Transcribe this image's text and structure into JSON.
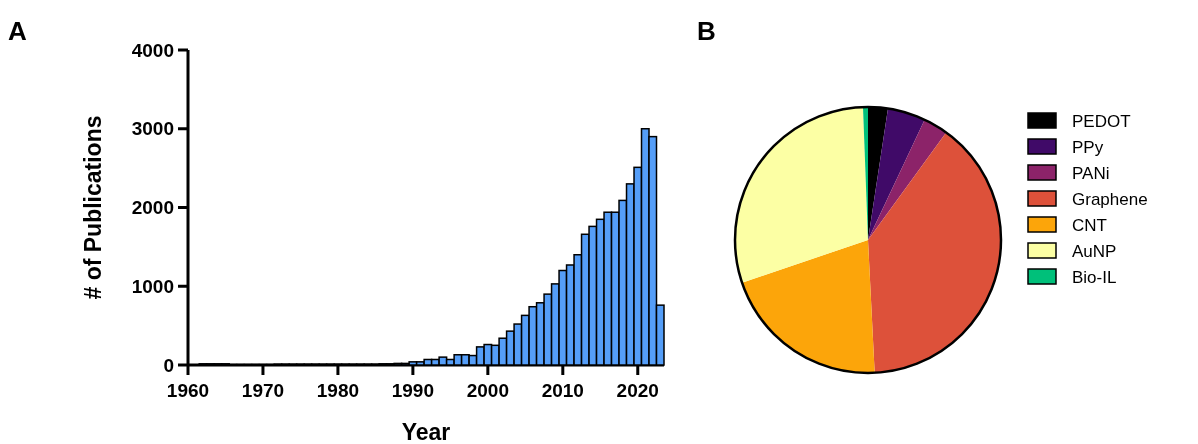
{
  "chart_data": [
    {
      "type": "histogram",
      "title": "A",
      "xlabel": "Year",
      "ylabel": "# of Publications",
      "color": "#559ef8",
      "bins": [
        1961.5,
        1962.5,
        1963.5,
        1964.5,
        1965.5,
        1966.5,
        1967.5,
        1968.5,
        1969.5,
        1970.5,
        1971.5,
        1972.5,
        1973.5,
        1974.5,
        1975.5,
        1976.5,
        1977.5,
        1978.5,
        1979.5,
        1980.5,
        1981.5,
        1982.5,
        1983.5,
        1984.5,
        1985.5,
        1986.5,
        1987.5,
        1988.5,
        1989.5,
        1990.5,
        1991.5,
        1992.5,
        1993.5,
        1994.5,
        1995.5,
        1996.5,
        1997.5,
        1998.5,
        1999.5,
        2000.5,
        2001.5,
        2002.5,
        2003.5,
        2004.5,
        2005.5,
        2006.5,
        2007.5,
        2008.5,
        2009.5,
        2010.5,
        2011.5,
        2012.5,
        2013.5,
        2014.5,
        2015.5,
        2016.5,
        2017.5,
        2018.5,
        2019.5,
        2020.5,
        2021.5,
        2022.5,
        2023.5
      ],
      "values": [
        15,
        15,
        15,
        15,
        5,
        5,
        5,
        5,
        5,
        5,
        10,
        10,
        10,
        10,
        10,
        10,
        10,
        10,
        10,
        10,
        10,
        10,
        10,
        10,
        15,
        15,
        20,
        20,
        40,
        40,
        70,
        70,
        100,
        70,
        130,
        130,
        120,
        230,
        260,
        250,
        340,
        430,
        520,
        630,
        740,
        790,
        900,
        1030,
        1200,
        1270,
        1400,
        1660,
        1760,
        1850,
        1940,
        1940,
        2090,
        2300,
        2510,
        3000,
        2900,
        760
      ],
      "xlim": [
        1960,
        2023.5
      ],
      "xticks": [
        1960,
        1970,
        1980,
        1990,
        2000,
        2010,
        2020
      ],
      "ylim": [
        0,
        4000
      ],
      "yticks": [
        0,
        1000,
        2000,
        3000,
        4000
      ],
      "grid": false
    },
    {
      "type": "pie",
      "title": "B",
      "legend": "right",
      "categories": [
        "PEDOT",
        "PPy",
        "PANi",
        "Graphene",
        "CNT",
        "AuNP",
        "Bio-IL"
      ],
      "values": [
        2.4,
        4.6,
        3.0,
        39.2,
        20.6,
        29.6,
        0.6
      ],
      "colors": [
        "#000000",
        "#400a68",
        "#8c2369",
        "#dd513a",
        "#fca50a",
        "#fcffa4",
        "#00c07a"
      ]
    }
  ]
}
